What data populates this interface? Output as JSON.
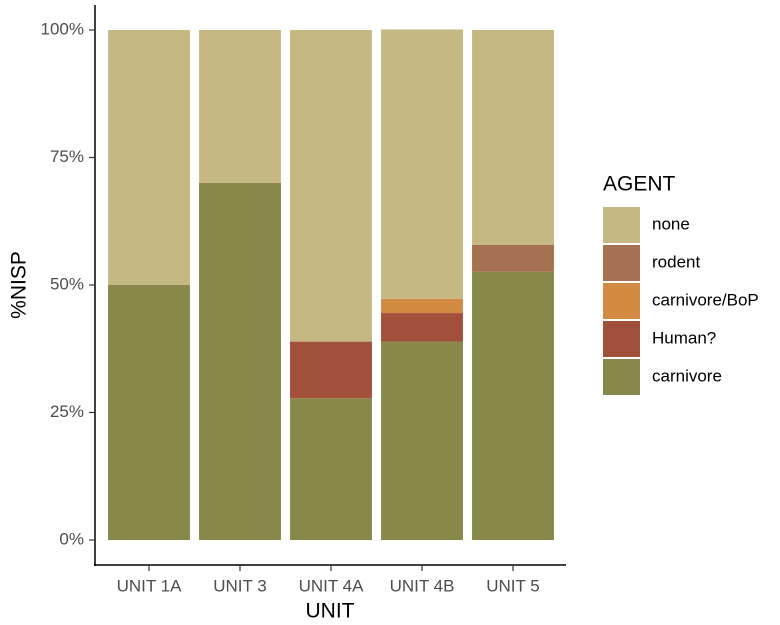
{
  "chart_data": {
    "type": "stacked_bar",
    "x_label": "UNIT",
    "y_label": "%NISP",
    "categories": [
      "UNIT 1A",
      "UNIT 3",
      "UNIT 4A",
      "UNIT 4B",
      "UNIT 5"
    ],
    "legend_title": "AGENT",
    "series": [
      {
        "name": "none",
        "color": "#c5b883",
        "values": [
          50,
          30,
          61.1,
          52.8,
          42.1
        ]
      },
      {
        "name": "rodent",
        "color": "#a67150",
        "values": [
          0,
          0,
          0,
          0,
          5.3
        ]
      },
      {
        "name": "carnivore/BoP",
        "color": "#d38b44",
        "values": [
          0,
          0,
          0,
          2.8,
          0
        ]
      },
      {
        "name": "Human?",
        "color": "#a3503a",
        "values": [
          0,
          0,
          11.1,
          5.6,
          0
        ]
      },
      {
        "name": "carnivore",
        "color": "#87884a",
        "values": [
          50,
          70,
          27.8,
          38.9,
          52.6
        ]
      }
    ],
    "ylim": [
      0,
      100
    ],
    "yticks": [
      {
        "value": 0,
        "label": "0%"
      },
      {
        "value": 25,
        "label": "25%"
      },
      {
        "value": 50,
        "label": "50%"
      },
      {
        "value": 75,
        "label": "75%"
      },
      {
        "value": 100,
        "label": "100%"
      }
    ],
    "legend_position": "right"
  }
}
